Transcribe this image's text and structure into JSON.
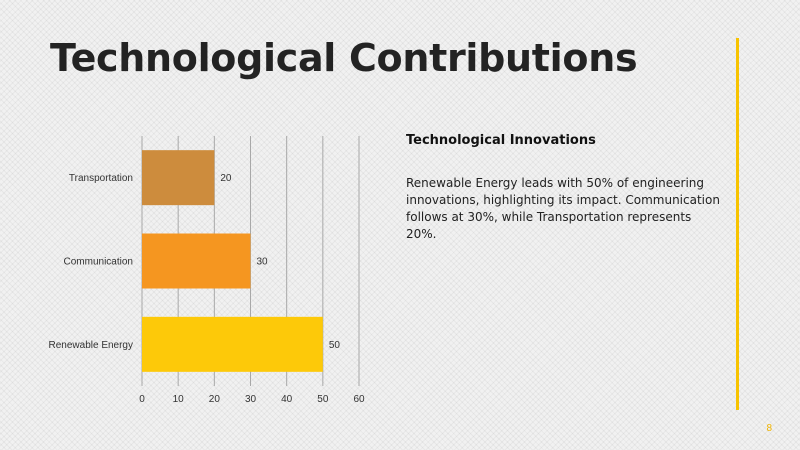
{
  "slide": {
    "title": "Technological Contributions",
    "page_number": "8"
  },
  "sidebar": {
    "heading": "Technological Innovations",
    "body": "Renewable Energy leads with 50% of engineering innovations, highlighting its impact. Communication follows at 30%, while Transportation represents 20%."
  },
  "colors": {
    "accent": "#f7c300",
    "bars": [
      "#cd8c3d",
      "#f59620",
      "#fdc909"
    ],
    "grid": "#a8a8a8"
  },
  "chart_data": {
    "type": "bar",
    "orientation": "horizontal",
    "categories": [
      "Transportation",
      "Communication",
      "Renewable Energy"
    ],
    "values": [
      20,
      30,
      50
    ],
    "xlim": [
      0,
      60
    ],
    "xticks": [
      "0",
      "10",
      "20",
      "30",
      "40",
      "50",
      "60"
    ],
    "title": "",
    "xlabel": "",
    "ylabel": "",
    "grid": true,
    "legend": "none"
  }
}
